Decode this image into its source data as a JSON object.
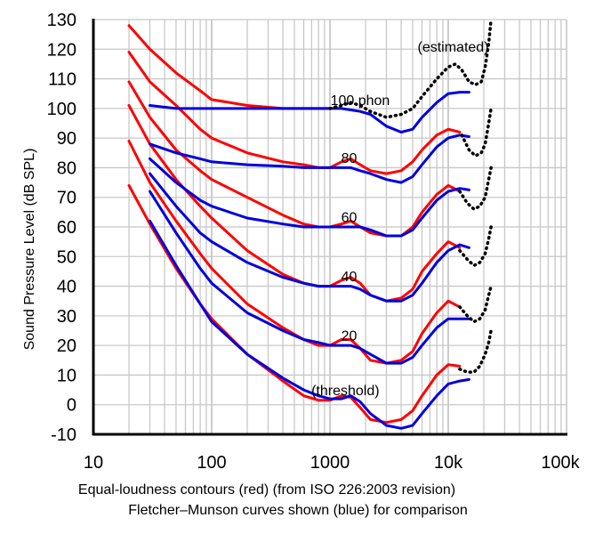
{
  "chart_data": {
    "type": "line",
    "title": "",
    "xlabel": "",
    "ylabel": "Sound Pressure Level (dB SPL)",
    "x_scale": "log",
    "xlim": [
      10,
      100000
    ],
    "ylim": [
      -10,
      130
    ],
    "x_ticks": [
      {
        "value": 10,
        "label": "10"
      },
      {
        "value": 100,
        "label": "100"
      },
      {
        "value": 1000,
        "label": "1000"
      },
      {
        "value": 10000,
        "label": "10k"
      },
      {
        "value": 100000,
        "label": "100k"
      }
    ],
    "y_ticks": [
      -10,
      0,
      10,
      20,
      30,
      40,
      50,
      60,
      70,
      80,
      90,
      100,
      110,
      120,
      130
    ],
    "grid": true,
    "series_colors": {
      "iso": "#ff0000",
      "fletcher": "#0000dd",
      "estimated": "#000000"
    },
    "series": [
      {
        "group": "iso",
        "x": [
          20,
          30,
          50,
          80,
          100,
          200,
          400,
          600,
          800,
          1000,
          1250,
          1500,
          1800,
          2200,
          3000,
          4000,
          5000,
          6000,
          8000,
          10000,
          12500
        ],
        "y": [
          74,
          61,
          46,
          34,
          29,
          17,
          8,
          3,
          1.5,
          1.5,
          3,
          2.5,
          -1,
          -5,
          -6,
          -5,
          -2,
          3,
          10,
          13.5,
          13
        ]
      },
      {
        "group": "iso",
        "x": [
          20,
          30,
          50,
          80,
          100,
          200,
          400,
          600,
          800,
          1000,
          1250,
          1500,
          1800,
          2200,
          3000,
          4000,
          5000,
          6000,
          8000,
          10000,
          12500
        ],
        "y": [
          89,
          75,
          62,
          51,
          46,
          34,
          26,
          22,
          20,
          20,
          22,
          22,
          19,
          15,
          14,
          15,
          18,
          24,
          31,
          35,
          33
        ]
      },
      {
        "group": "iso",
        "x": [
          20,
          30,
          50,
          80,
          100,
          200,
          400,
          600,
          800,
          1000,
          1250,
          1500,
          1800,
          2200,
          3000,
          4000,
          5000,
          6000,
          8000,
          10000,
          12500
        ],
        "y": [
          101,
          88,
          76,
          67,
          63,
          52,
          44,
          41,
          40,
          40,
          42,
          43,
          41,
          37,
          35,
          36,
          39,
          45,
          51,
          55,
          53
        ]
      },
      {
        "group": "iso",
        "x": [
          20,
          30,
          50,
          80,
          100,
          200,
          400,
          600,
          800,
          1000,
          1250,
          1500,
          1800,
          2200,
          3000,
          4000,
          5000,
          6000,
          8000,
          10000,
          12500
        ],
        "y": [
          109,
          97,
          86,
          79,
          76,
          70,
          64,
          61,
          60,
          60,
          61,
          62,
          60,
          58,
          57,
          57,
          60,
          65,
          71,
          74,
          72
        ]
      },
      {
        "group": "iso",
        "x": [
          20,
          30,
          50,
          80,
          100,
          200,
          400,
          600,
          800,
          1000,
          1250,
          1500,
          1800,
          2200,
          3000,
          4000,
          5000,
          6000,
          8000,
          10000,
          12500
        ],
        "y": [
          119,
          109,
          101,
          93,
          90,
          85,
          82,
          81,
          80,
          80,
          82,
          83,
          81,
          79,
          78,
          79,
          82,
          86,
          91,
          93,
          92
        ]
      },
      {
        "group": "iso",
        "x": [
          20,
          30,
          50,
          80,
          100,
          200,
          400,
          600,
          800,
          1000
        ],
        "y": [
          128,
          120,
          112,
          106,
          103,
          101,
          100,
          100,
          100,
          100
        ]
      },
      {
        "group": "fletcher",
        "x": [
          30,
          50,
          80,
          100,
          200,
          400,
          600,
          800,
          1000,
          1250,
          1500,
          1800,
          2200,
          3000,
          4000,
          5000,
          6000,
          8000,
          10000,
          12500,
          15000
        ],
        "y": [
          62,
          47,
          34,
          28,
          17,
          9,
          5,
          3,
          2,
          2,
          3,
          1,
          -3,
          -7,
          -8,
          -7,
          -3,
          3,
          7,
          8,
          8.5
        ]
      },
      {
        "group": "fletcher",
        "x": [
          30,
          50,
          80,
          100,
          200,
          400,
          600,
          800,
          1000,
          1250,
          1500,
          1800,
          2200,
          3000,
          4000,
          5000,
          6000,
          8000,
          10000,
          12500,
          15000
        ],
        "y": [
          72,
          58,
          46,
          41,
          31,
          25,
          22,
          21,
          20,
          20,
          20,
          19,
          17,
          14,
          14,
          16,
          20,
          26,
          29,
          29,
          29
        ]
      },
      {
        "group": "fletcher",
        "x": [
          30,
          50,
          80,
          100,
          200,
          400,
          600,
          800,
          1000,
          1250,
          1500,
          1800,
          2200,
          3000,
          4000,
          5000,
          6000,
          8000,
          10000,
          12500,
          15000
        ],
        "y": [
          78,
          67,
          58,
          55,
          48,
          43,
          41,
          40,
          40,
          40,
          40,
          39,
          37,
          35,
          35,
          37,
          41,
          48,
          52,
          54,
          53
        ]
      },
      {
        "group": "fletcher",
        "x": [
          30,
          50,
          80,
          100,
          200,
          400,
          600,
          800,
          1000,
          1250,
          1500,
          1800,
          2200,
          3000,
          4000,
          5000,
          6000,
          8000,
          10000,
          12500,
          15000
        ],
        "y": [
          83,
          75,
          69,
          67,
          63,
          61,
          60,
          60,
          60,
          60,
          60,
          60,
          59,
          57,
          57,
          59,
          63,
          69,
          72,
          73,
          72.5
        ]
      },
      {
        "group": "fletcher",
        "x": [
          30,
          50,
          80,
          100,
          200,
          400,
          600,
          800,
          1000,
          1250,
          1500,
          1800,
          2200,
          3000,
          4000,
          5000,
          6000,
          8000,
          10000,
          12500,
          15000
        ],
        "y": [
          88,
          85,
          83,
          82,
          81,
          80.5,
          80,
          80,
          80,
          80,
          80,
          79,
          78,
          76,
          75,
          77,
          81,
          87,
          90,
          91,
          90.5
        ]
      },
      {
        "group": "fletcher",
        "x": [
          30,
          50,
          80,
          100,
          200,
          400,
          600,
          800,
          1000,
          1250,
          1500,
          1800,
          2200,
          3000,
          4000,
          5000,
          6000,
          8000,
          10000,
          12500,
          15000
        ],
        "y": [
          101,
          100,
          100,
          100,
          100,
          100,
          100,
          100,
          100,
          100,
          99.5,
          99,
          98,
          94,
          92,
          93,
          97,
          102,
          105,
          105.5,
          105.5
        ]
      },
      {
        "group": "estimated",
        "x": [
          1000,
          1250,
          1500,
          1800,
          2200,
          3000,
          4000,
          5000,
          6000,
          8000,
          10000,
          11500,
          13000,
          15000,
          17000,
          19000,
          20500,
          22000,
          23000
        ],
        "y": [
          100,
          101,
          102,
          101,
          99,
          97,
          98,
          100,
          104,
          110,
          114,
          115,
          113,
          109,
          108,
          109,
          114,
          122,
          130
        ]
      },
      {
        "group": "estimated",
        "x": [
          13000,
          15000,
          17000,
          19000,
          20500,
          22000,
          23000
        ],
        "y": [
          91,
          86,
          84,
          85,
          88,
          95,
          100
        ]
      },
      {
        "group": "estimated",
        "x": [
          12500,
          14500,
          16500,
          18500,
          20500,
          22000,
          23000
        ],
        "y": [
          72,
          68,
          66,
          67,
          70,
          76,
          80
        ]
      },
      {
        "group": "estimated",
        "x": [
          12500,
          14500,
          16500,
          18500,
          20500,
          22000,
          23000
        ],
        "y": [
          52,
          49,
          47,
          48,
          51,
          56,
          60
        ]
      },
      {
        "group": "estimated",
        "x": [
          12500,
          14500,
          16500,
          18500,
          20500,
          22000,
          23000
        ],
        "y": [
          33,
          30,
          28,
          29,
          32,
          37,
          40
        ]
      },
      {
        "group": "estimated",
        "x": [
          12500,
          14500,
          16500,
          18500,
          20500,
          22000,
          23000
        ],
        "y": [
          12,
          11,
          11,
          13,
          17,
          21,
          25
        ]
      }
    ],
    "annotations": [
      {
        "text": "(estimated)",
        "x": 11000,
        "y": 121
      },
      {
        "text": "100 phon",
        "x": 1800,
        "y": 103
      },
      {
        "text": "80",
        "x": 1450,
        "y": 83.5
      },
      {
        "text": "60",
        "x": 1450,
        "y": 63.5
      },
      {
        "text": "40",
        "x": 1450,
        "y": 43.5
      },
      {
        "text": "20",
        "x": 1450,
        "y": 23.5
      },
      {
        "text": "(threshold)",
        "x": 1350,
        "y": 5
      }
    ],
    "caption": [
      "Equal-loudness contours (red) (from ISO 226:2003 revision)",
      "Fletcher–Munson curves shown (blue) for comparison"
    ]
  }
}
